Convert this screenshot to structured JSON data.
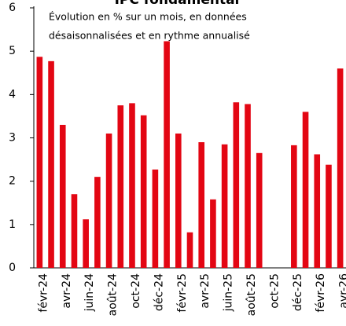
{
  "chart_data": {
    "type": "bar",
    "title": "IPC fondamental",
    "subtitle": [
      "Évolution en % sur un mois, en données",
      "désaisonnalisées et en rythme annualisé"
    ],
    "categories": [
      "févr-24",
      null,
      "avr-24",
      null,
      "juin-24",
      null,
      "août-24",
      null,
      "oct-24",
      null,
      "déc-24",
      null,
      "févr-25",
      null,
      "avr-25",
      null,
      "juin-25",
      null,
      "août-25",
      null,
      "oct-25",
      null,
      "déc-25",
      null,
      "févr-26",
      null,
      "avr-26"
    ],
    "values": [
      4.87,
      4.77,
      3.3,
      1.7,
      1.12,
      2.1,
      3.1,
      3.75,
      3.8,
      3.52,
      2.27,
      5.23,
      3.1,
      0.82,
      2.9,
      1.58,
      2.85,
      3.82,
      3.78,
      2.65,
      null,
      null,
      2.83,
      3.6,
      2.62,
      2.38,
      4.6
    ],
    "color": "#e30613",
    "ylim": [
      0,
      6
    ],
    "yticks": [
      0,
      1,
      2,
      3,
      4,
      5,
      6
    ],
    "grid": false
  }
}
